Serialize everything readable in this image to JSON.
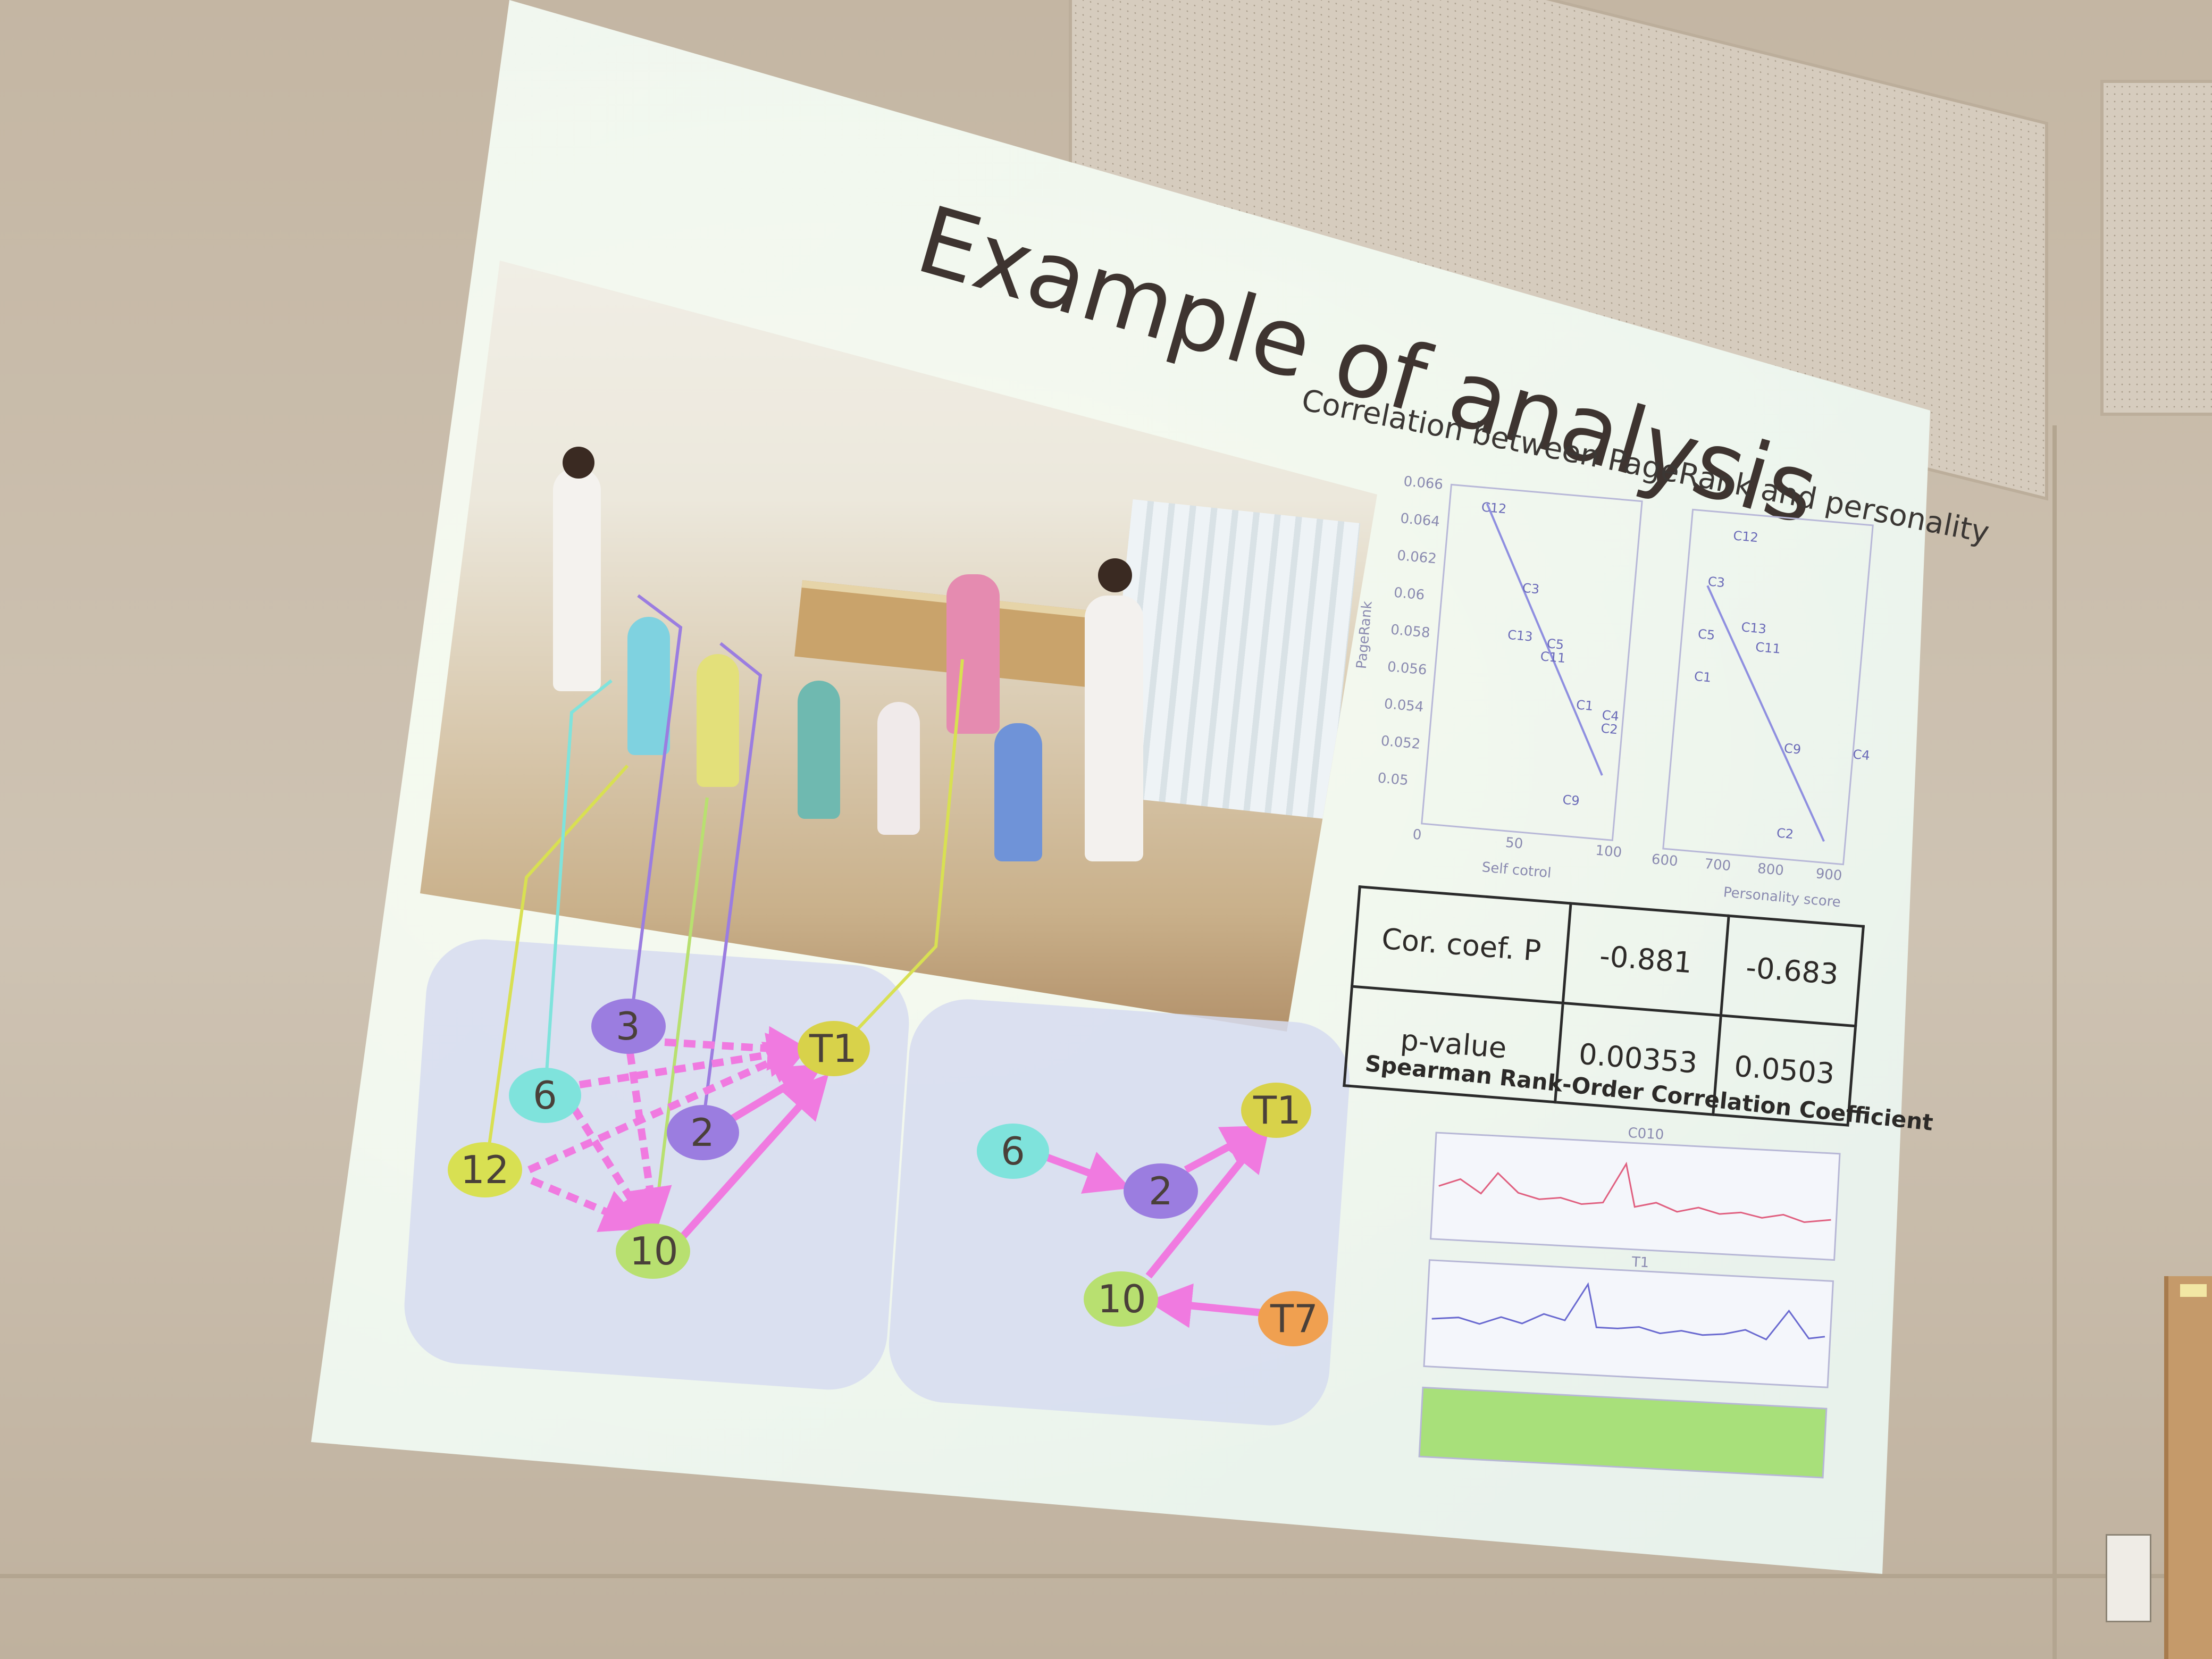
{
  "slide": {
    "title": "Example of analysis",
    "subtitle": "Correlation between PageRank and personality"
  },
  "network_left": {
    "nodes": [
      {
        "id": "3",
        "label": "3",
        "color": "#9b7de0"
      },
      {
        "id": "T1",
        "label": "T1",
        "color": "#d8d24a"
      },
      {
        "id": "6",
        "label": "6",
        "color": "#7fe3dc"
      },
      {
        "id": "2",
        "label": "2",
        "color": "#9b7de0"
      },
      {
        "id": "12",
        "label": "12",
        "color": "#d8e052"
      },
      {
        "id": "10",
        "label": "10",
        "color": "#b8e070"
      }
    ]
  },
  "network_right": {
    "nodes": [
      {
        "id": "6",
        "label": "6",
        "color": "#7fe3dc"
      },
      {
        "id": "T1",
        "label": "T1",
        "color": "#d8d24a"
      },
      {
        "id": "2",
        "label": "2",
        "color": "#9b7de0"
      },
      {
        "id": "10",
        "label": "10",
        "color": "#b8e070"
      },
      {
        "id": "T7",
        "label": "T7",
        "color": "#f0a050"
      }
    ]
  },
  "edge_color": "#f07ae0",
  "scatter_left": {
    "ylabel": "PageRank",
    "xlabel": "Self cotrol",
    "yticks": [
      "0.066",
      "0.064",
      "0.062",
      "0.06",
      "0.058",
      "0.056",
      "0.054",
      "0.052",
      "0.05"
    ],
    "xticks": [
      "0",
      "50",
      "100"
    ],
    "points": [
      "C12",
      "C3",
      "C13",
      "C5",
      "C11",
      "C1",
      "C4",
      "C2",
      "C9"
    ]
  },
  "scatter_right": {
    "xlabel": "Personality score",
    "xticks": [
      "600",
      "700",
      "800",
      "900"
    ],
    "points": [
      "C12",
      "C3",
      "C13",
      "C11",
      "C5",
      "C1",
      "C9",
      "C4",
      "C2"
    ]
  },
  "stats_table": {
    "row1_label": "Cor. coef. P",
    "row1_v1": "-0.881",
    "row1_v2": "-0.683",
    "row2_label": "p-value",
    "row2_v1": "0.00353",
    "row2_v2": "0.0503"
  },
  "spearman_caption": "Spearman Rank-Order Correlation Coefficient",
  "timeseries": {
    "top_title": "C010",
    "mid_title": "T1"
  }
}
